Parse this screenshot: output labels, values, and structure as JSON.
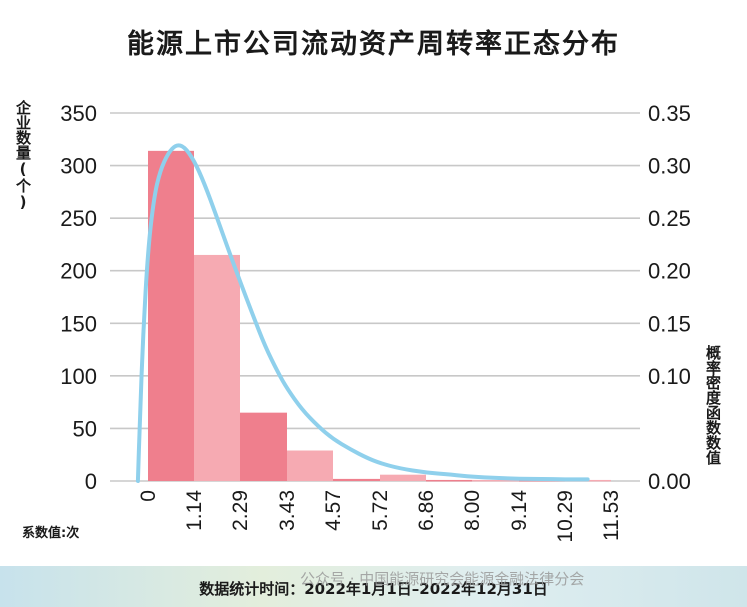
{
  "chart_data": {
    "type": "bar",
    "title": "能源上市公司流动资产周转率正态分布",
    "ylabel_left": "企业数量(个)",
    "ylabel_right": "概率密度函数数值",
    "xlabel": "系数值:次",
    "categories": [
      "0",
      "1.14",
      "2.29",
      "3.43",
      "4.57",
      "5.72",
      "6.86",
      "8.00",
      "9.14",
      "10.29",
      "11.53"
    ],
    "bins": [
      {
        "from": "0",
        "to": "1.14",
        "count": 314
      },
      {
        "from": "1.14",
        "to": "2.29",
        "count": 215
      },
      {
        "from": "2.29",
        "to": "3.43",
        "count": 65
      },
      {
        "from": "3.43",
        "to": "4.57",
        "count": 29
      },
      {
        "from": "4.57",
        "to": "5.72",
        "count": 2
      },
      {
        "from": "5.72",
        "to": "6.86",
        "count": 6
      },
      {
        "from": "6.86",
        "to": "8.00",
        "count": 1
      },
      {
        "from": "8.00",
        "to": "9.14",
        "count": 1
      },
      {
        "from": "9.14",
        "to": "10.29",
        "count": 1
      },
      {
        "from": "10.29",
        "to": "11.53",
        "count": 1
      }
    ],
    "bar_colors": [
      "#ef7f8d",
      "#f6aab2"
    ],
    "left_axis": {
      "ylim": [
        0,
        350
      ],
      "ticks": [
        "0",
        "50",
        "100",
        "150",
        "200",
        "250",
        "300",
        "350"
      ]
    },
    "right_axis": {
      "ylim": [
        0,
        0.35
      ],
      "ticks": [
        "0.00",
        "0.10",
        "0.15",
        "0.20",
        "0.25",
        "0.30",
        "0.35"
      ]
    },
    "density_curve": {
      "color": "#8fd0ec",
      "x": [
        -0.25,
        -0.2,
        -0.12,
        0,
        0.15,
        0.3,
        0.5,
        0.7,
        0.9,
        1.14,
        1.4,
        1.7,
        2.0,
        2.29,
        2.6,
        2.9,
        3.2,
        3.43,
        3.8,
        4.2,
        4.57,
        5.0,
        5.4,
        5.72,
        6.2,
        6.86,
        7.5,
        8.0,
        8.6,
        9.14,
        9.7,
        10.29,
        10.9
      ],
      "y": [
        0.0,
        0.06,
        0.14,
        0.22,
        0.27,
        0.295,
        0.312,
        0.32,
        0.318,
        0.305,
        0.283,
        0.252,
        0.22,
        0.19,
        0.158,
        0.128,
        0.104,
        0.088,
        0.068,
        0.052,
        0.04,
        0.03,
        0.022,
        0.017,
        0.012,
        0.008,
        0.006,
        0.004,
        0.003,
        0.002,
        0.002,
        0.0015,
        0.0015
      ]
    }
  },
  "footer": {
    "note": "数据统计时间：2022年1月1日–2022年12月31日",
    "watermark": "公众号 · 中国能源研究会能源金融法律分会"
  }
}
